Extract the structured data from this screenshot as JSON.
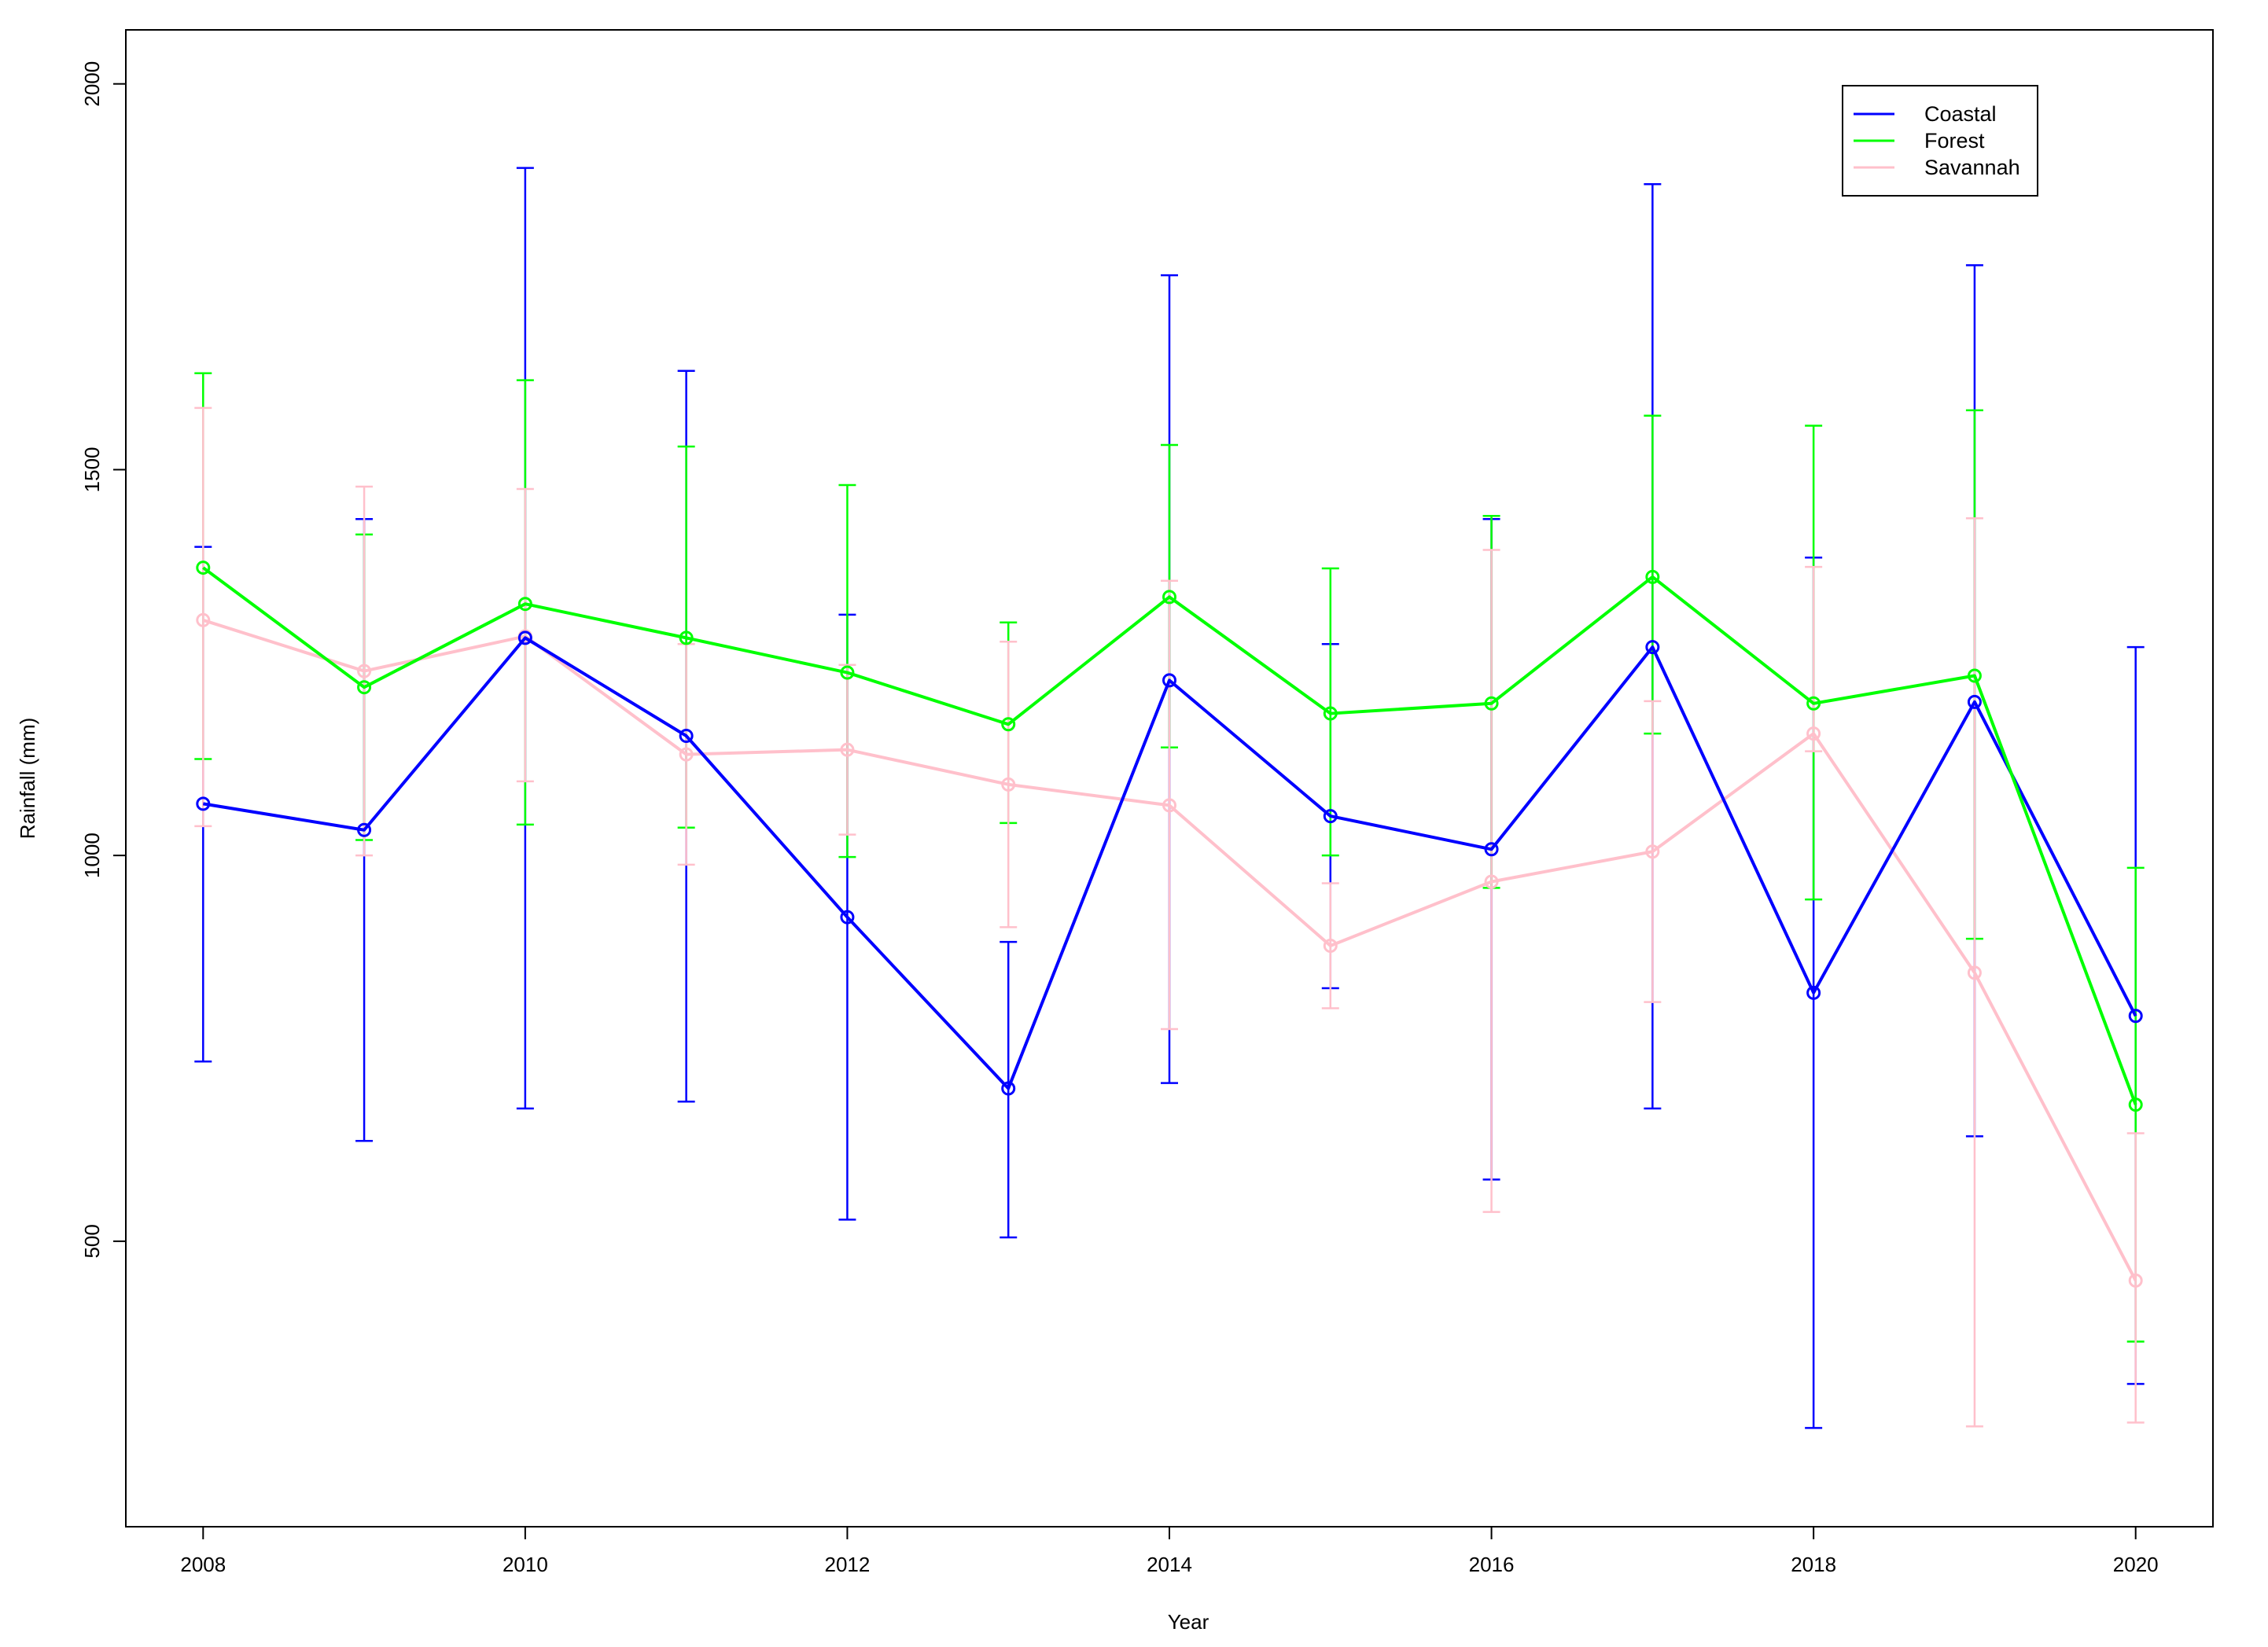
{
  "chart_data": {
    "type": "line",
    "title": "",
    "xlabel": "Year",
    "ylabel": "Rainfall (mm)",
    "x": [
      2008,
      2009,
      2010,
      2011,
      2012,
      2013,
      2014,
      2015,
      2016,
      2017,
      2018,
      2019,
      2020
    ],
    "xlim": [
      2007.52,
      2020.48
    ],
    "ylim": [
      130,
      2070
    ],
    "xticks": [
      2008,
      2010,
      2012,
      2014,
      2016,
      2018,
      2020
    ],
    "yticks": [
      500,
      1000,
      1500,
      2000
    ],
    "grid": false,
    "legend_position": "top-right",
    "error_bars": true,
    "series": [
      {
        "name": "Coastal",
        "color": "#0000FF",
        "values": [
          1067,
          1033,
          1282,
          1155,
          920,
          698,
          1227,
          1051,
          1008,
          1270,
          822,
          1199,
          792
        ],
        "lower": [
          733,
          630,
          672,
          681,
          528,
          505,
          705,
          828,
          580,
          672,
          258,
          636,
          315
        ],
        "upper": [
          1400,
          1436,
          1891,
          1628,
          1312,
          888,
          1752,
          1274,
          1436,
          1870,
          1386,
          1765,
          1270
        ]
      },
      {
        "name": "Forest",
        "color": "#00FF00",
        "values": [
          1373,
          1218,
          1326,
          1282,
          1237,
          1170,
          1335,
          1184,
          1197,
          1361,
          1197,
          1233,
          677
        ],
        "lower": [
          1125,
          1020,
          1040,
          1036,
          998,
          1042,
          1140,
          1000,
          958,
          1158,
          943,
          892,
          370
        ],
        "upper": [
          1625,
          1416,
          1616,
          1530,
          1480,
          1302,
          1532,
          1372,
          1440,
          1570,
          1557,
          1577,
          984
        ]
      },
      {
        "name": "Savannah",
        "color": "#FFC0CB",
        "values": [
          1305,
          1239,
          1284,
          1131,
          1137,
          1092,
          1065,
          883,
          966,
          1005,
          1158,
          848,
          449
        ],
        "lower": [
          1038,
          1000,
          1096,
          988,
          1027,
          907,
          775,
          802,
          538,
          810,
          1135,
          260,
          265
        ],
        "upper": [
          1580,
          1478,
          1475,
          1274,
          1247,
          1277,
          1356,
          964,
          1396,
          1200,
          1374,
          1437,
          640
        ]
      }
    ]
  }
}
